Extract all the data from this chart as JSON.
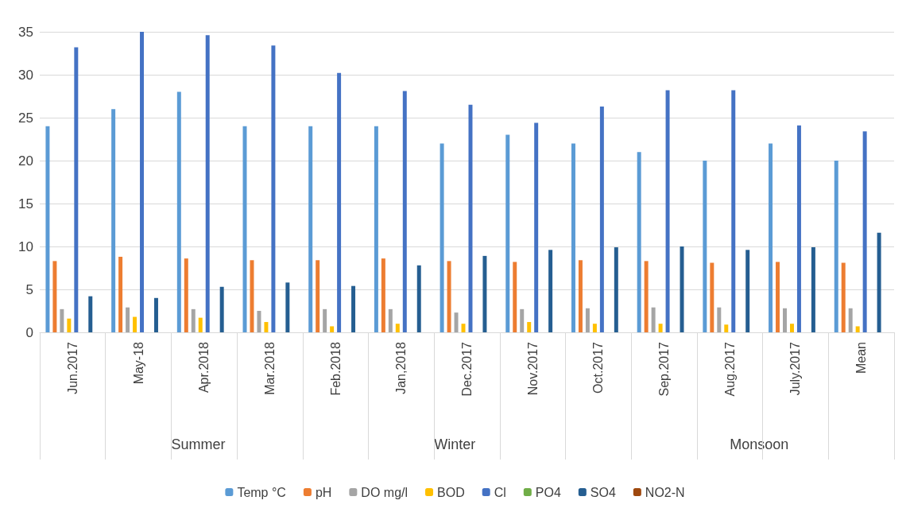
{
  "chart_data": {
    "type": "bar",
    "categories": [
      "Jun.2017",
      "May-18",
      "Apr.2018",
      "Mar.2018",
      "Feb.2018",
      "Jan,2018",
      "Dec.2017",
      "Nov.2017",
      "Oct.2017",
      "Sep.2017",
      "Aug.2017",
      "July.2017",
      "Mean"
    ],
    "series": [
      {
        "name": "Temp °C",
        "color": "#5b9bd5",
        "values": [
          24,
          26,
          28,
          24,
          24,
          24,
          22,
          23,
          22,
          21,
          20,
          22,
          20
        ]
      },
      {
        "name": "pH",
        "color": "#ed7d31",
        "values": [
          8.3,
          8.8,
          8.6,
          8.4,
          8.4,
          8.6,
          8.3,
          8.2,
          8.4,
          8.3,
          8.1,
          8.2,
          8.1
        ]
      },
      {
        "name": "DO mg/l",
        "color": "#a5a5a5",
        "values": [
          2.7,
          2.9,
          2.7,
          2.5,
          2.7,
          2.7,
          2.3,
          2.7,
          2.8,
          2.9,
          2.9,
          2.8,
          2.8
        ]
      },
      {
        "name": "BOD",
        "color": "#ffc000",
        "values": [
          1.6,
          1.8,
          1.7,
          1.2,
          0.7,
          1.0,
          1.0,
          1.2,
          1.0,
          1.0,
          0.9,
          1.0,
          0.7
        ]
      },
      {
        "name": "Cl",
        "color": "#4472c4",
        "values": [
          33.2,
          35,
          34.6,
          33.4,
          30.2,
          28.1,
          26.5,
          24.4,
          26.3,
          28.2,
          28.2,
          24.1,
          23.4
        ]
      },
      {
        "name": "PO4",
        "color": "#70ad47",
        "values": [
          0,
          0,
          0,
          0,
          0,
          0,
          0,
          0,
          0,
          0,
          0,
          0,
          0
        ]
      },
      {
        "name": "SO4",
        "color": "#255e91",
        "values": [
          4.2,
          4.0,
          5.3,
          5.8,
          5.4,
          7.8,
          8.9,
          9.6,
          9.9,
          10.0,
          9.6,
          9.9,
          11.6
        ]
      },
      {
        "name": "NO2-N",
        "color": "#9e480e",
        "values": [
          0,
          0,
          0,
          0,
          0,
          0,
          0,
          0,
          0,
          0,
          0,
          0,
          0
        ]
      }
    ],
    "annotations": [
      "Summer",
      "Winter",
      "Monsoon"
    ],
    "ylim": [
      0,
      35
    ],
    "yticks": [
      0,
      5,
      10,
      15,
      20,
      25,
      30,
      35
    ],
    "grid": "y",
    "legend": "bottom"
  }
}
